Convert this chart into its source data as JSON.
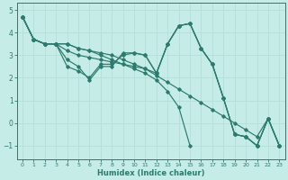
{
  "xlabel": "Humidex (Indice chaleur)",
  "background_color": "#c5ece6",
  "line_color": "#2d7a6e",
  "grid_color": "#b8e0da",
  "xlim": [
    -0.5,
    23.5
  ],
  "ylim": [
    -1.6,
    5.3
  ],
  "yticks": [
    -1,
    0,
    1,
    2,
    3,
    4,
    5
  ],
  "xtick_labels": [
    "0",
    "1",
    "2",
    "3",
    "4",
    "5",
    "6",
    "7",
    "8",
    "9",
    "10",
    "11",
    "12",
    "13",
    "14",
    "15",
    "16",
    "17",
    "18",
    "19",
    "20",
    "21",
    "22",
    "23"
  ],
  "series": [
    {
      "x": [
        0,
        1,
        2,
        3,
        4,
        5,
        6,
        7,
        8,
        9,
        10,
        11,
        12,
        13,
        14,
        15,
        16,
        17,
        18,
        19,
        20,
        21,
        22,
        23
      ],
      "y": [
        4.7,
        3.7,
        3.5,
        3.5,
        2.8,
        2.5,
        1.9,
        2.5,
        2.5,
        3.1,
        3.1,
        3.0,
        2.2,
        3.5,
        4.3,
        4.4,
        3.3,
        2.6,
        1.1,
        -0.5,
        -0.6,
        -1.0,
        0.2,
        -1.0
      ]
    },
    {
      "x": [
        0,
        1,
        2,
        3,
        4,
        5,
        6,
        7,
        8,
        9,
        10,
        11,
        12,
        13,
        14,
        15,
        16,
        17,
        18,
        19,
        20,
        21,
        22,
        23
      ],
      "y": [
        4.7,
        3.7,
        3.5,
        3.5,
        2.5,
        2.3,
        2.0,
        2.6,
        2.6,
        3.0,
        3.1,
        3.0,
        2.2,
        3.5,
        4.3,
        4.4,
        3.3,
        2.6,
        1.1,
        -0.5,
        -0.6,
        -1.0,
        0.2,
        -1.0
      ]
    },
    {
      "x": [
        0,
        1,
        2,
        3,
        4,
        5,
        6,
        7,
        8,
        9,
        10,
        11,
        12,
        13,
        14,
        15,
        16,
        17,
        18,
        19,
        20,
        21,
        22,
        23
      ],
      "y": [
        4.7,
        3.7,
        3.5,
        3.5,
        3.2,
        3.0,
        2.9,
        2.8,
        2.7,
        2.6,
        2.5,
        2.4,
        2.2,
        3.5,
        4.3,
        4.4,
        3.3,
        2.6,
        1.1,
        -0.5,
        -0.6,
        -1.0,
        0.2,
        -1.0
      ]
    },
    {
      "x": [
        0,
        1,
        2,
        3,
        4,
        5,
        6,
        7,
        8,
        9,
        10,
        11,
        12,
        13,
        14,
        15,
        16,
        17,
        18,
        19,
        20,
        21,
        22,
        23
      ],
      "y": [
        4.7,
        3.7,
        3.5,
        3.5,
        3.5,
        3.3,
        3.2,
        3.1,
        3.0,
        2.8,
        2.6,
        2.4,
        2.1,
        1.8,
        1.5,
        1.2,
        0.9,
        0.6,
        0.3,
        0.0,
        -0.3,
        -0.6,
        0.2,
        -1.0
      ]
    },
    {
      "x": [
        0,
        1,
        2,
        3,
        4,
        5,
        6,
        7,
        8,
        9,
        10,
        11,
        12,
        13,
        14,
        15
      ],
      "y": [
        4.7,
        3.7,
        3.5,
        3.5,
        3.5,
        3.3,
        3.2,
        3.0,
        2.8,
        2.6,
        2.4,
        2.2,
        1.9,
        1.4,
        0.7,
        -1.0
      ]
    }
  ]
}
